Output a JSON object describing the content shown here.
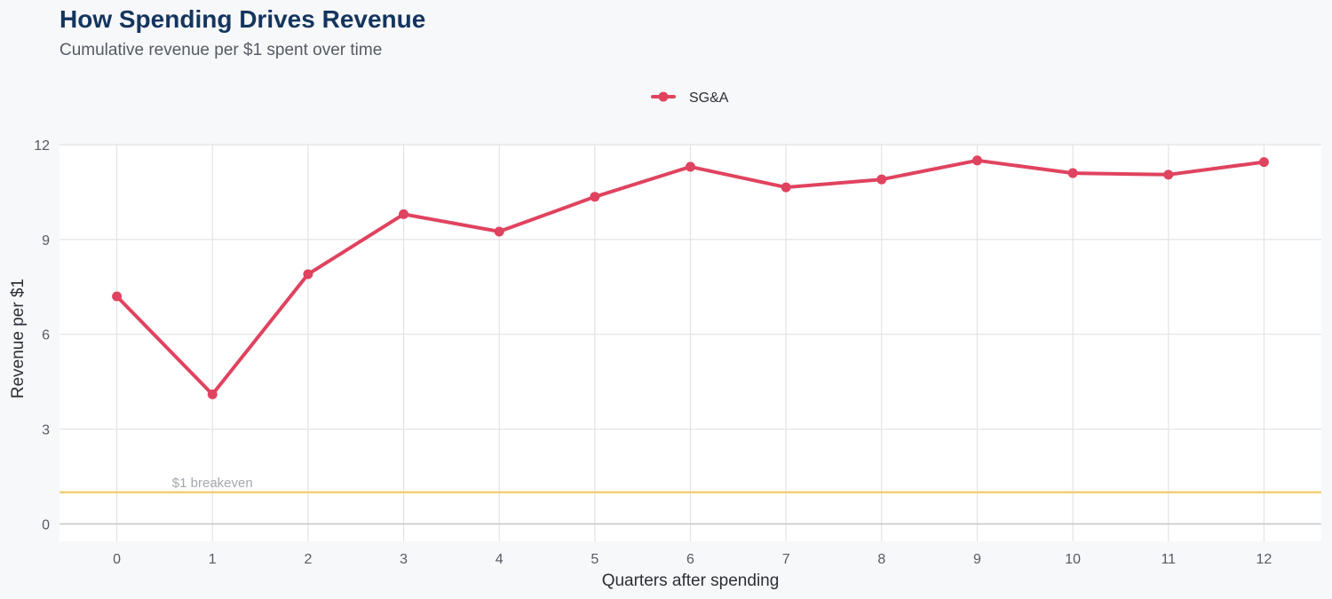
{
  "chart_data": {
    "type": "line",
    "title": "How Spending Drives Revenue",
    "subtitle": "Cumulative revenue per $1 spent over time",
    "xlabel": "Quarters after spending",
    "ylabel": "Revenue per $1",
    "x": [
      0,
      1,
      2,
      3,
      4,
      5,
      6,
      7,
      8,
      9,
      10,
      11,
      12
    ],
    "x_tick_labels": [
      "0",
      "1",
      "2",
      "3",
      "4",
      "5",
      "6",
      "7",
      "8",
      "9",
      "10",
      "11",
      "12"
    ],
    "y_ticks": [
      0,
      3,
      6,
      9,
      12
    ],
    "y_tick_labels": [
      "0",
      "3",
      "6",
      "9",
      "12"
    ],
    "xlim": [
      -0.6,
      12.6
    ],
    "ylim": [
      -0.55,
      12.0
    ],
    "grid": true,
    "legend_position": "top-center",
    "series": [
      {
        "name": "SG&A",
        "color": "#e0435f",
        "values": [
          7.2,
          4.1,
          7.9,
          9.8,
          9.25,
          10.35,
          11.3,
          10.65,
          10.9,
          11.5,
          11.1,
          11.05,
          11.45
        ]
      }
    ],
    "reference_line": {
      "value": 1.0,
      "label": "$1 breakeven",
      "color": "#f2cf78"
    }
  }
}
